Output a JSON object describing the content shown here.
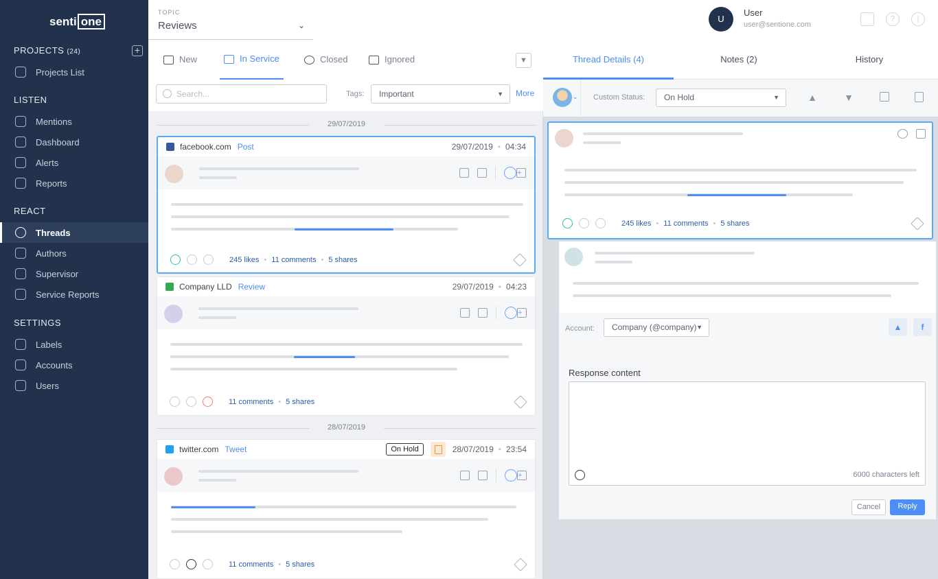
{
  "sidebar": {
    "logo": {
      "left": "senti",
      "right": "one"
    },
    "sections": [
      {
        "title": "PROJECTS",
        "count": "(24)",
        "items": [
          {
            "label": "Projects List",
            "icon": "projects-icon"
          }
        ]
      },
      {
        "title": "LISTEN",
        "items": [
          {
            "label": "Mentions",
            "icon": "mentions-icon"
          },
          {
            "label": "Dashboard",
            "icon": "dashboard-icon"
          },
          {
            "label": "Alerts",
            "icon": "bell-icon"
          },
          {
            "label": "Reports",
            "icon": "reports-icon"
          }
        ]
      },
      {
        "title": "REACT",
        "items": [
          {
            "label": "Threads",
            "icon": "threads-icon",
            "active": true
          },
          {
            "label": "Authors",
            "icon": "authors-icon"
          },
          {
            "label": "Supervisor",
            "icon": "supervisor-icon"
          },
          {
            "label": "Service Reports",
            "icon": "service-reports-icon"
          }
        ]
      },
      {
        "title": "SETTINGS",
        "items": [
          {
            "label": "Labels",
            "icon": "labels-icon"
          },
          {
            "label": "Accounts",
            "icon": "accounts-icon"
          },
          {
            "label": "Users",
            "icon": "user-icon"
          }
        ]
      }
    ]
  },
  "header": {
    "topic_label": "TOPIC",
    "topic_value": "Reviews",
    "user": {
      "initial": "U",
      "name": "User",
      "email": "user@sentione.com"
    }
  },
  "middle": {
    "tabs": [
      {
        "label": "New",
        "icon": "new-chat-icon"
      },
      {
        "label": "In Service",
        "icon": "in-service-icon",
        "active": true
      },
      {
        "label": "Closed",
        "icon": "check-circle-icon"
      },
      {
        "label": "Ignored",
        "icon": "trash-icon"
      }
    ],
    "search_placeholder": "Search...",
    "tags_label": "Tags:",
    "tags_value": "Important",
    "more_label": "More",
    "groups": [
      {
        "date": "29/07/2019",
        "cards": [
          {
            "source": "facebook.com",
            "type": "Post",
            "date": "29/07/2019",
            "time": "04:34",
            "selected": true,
            "icon_color": "#3b5998",
            "avatar_color": "#ead6cc",
            "sentiment": "positive",
            "likes": "245 likes",
            "comments": "11 comments",
            "shares": "5 shares"
          },
          {
            "source": "Company LLD",
            "type": "Review",
            "date": "29/07/2019",
            "time": "04:23",
            "icon_color": "#34a853",
            "avatar_color": "#d5d0ea",
            "sentiment": "negative",
            "comments": "11 comments",
            "shares": "5 shares"
          }
        ]
      },
      {
        "date": "28/07/2019",
        "cards": [
          {
            "source": "twitter.com",
            "type": "Tweet",
            "date": "28/07/2019",
            "time": "23:54",
            "status_badge": "On Hold",
            "has_note": true,
            "icon_color": "#1da1f2",
            "avatar_color": "#ecc8cc",
            "sentiment": "neutral",
            "comments": "11 comments",
            "shares": "5 shares"
          }
        ]
      }
    ]
  },
  "right": {
    "tabs": [
      {
        "label": "Thread Details (4)",
        "active": true
      },
      {
        "label": "Notes (2)"
      },
      {
        "label": "History"
      }
    ],
    "custom_status_label": "Custom Status:",
    "custom_status_value": "On Hold",
    "thread": {
      "likes": "245 likes",
      "comments": "11 comments",
      "shares": "5 shares",
      "sentiment": "positive"
    },
    "reply": {
      "account_label": "Account:",
      "account_value": "Company (@company)",
      "response_label": "Response content",
      "chars_left": "6000 characters left",
      "cancel": "Cancel",
      "reply": "Reply"
    }
  },
  "colors": {
    "sidebar": "#22324d",
    "accent": "#4c8df6",
    "selected_border": "#5aa9f5",
    "positive": "#2dc392",
    "negative": "#f07a7a"
  }
}
